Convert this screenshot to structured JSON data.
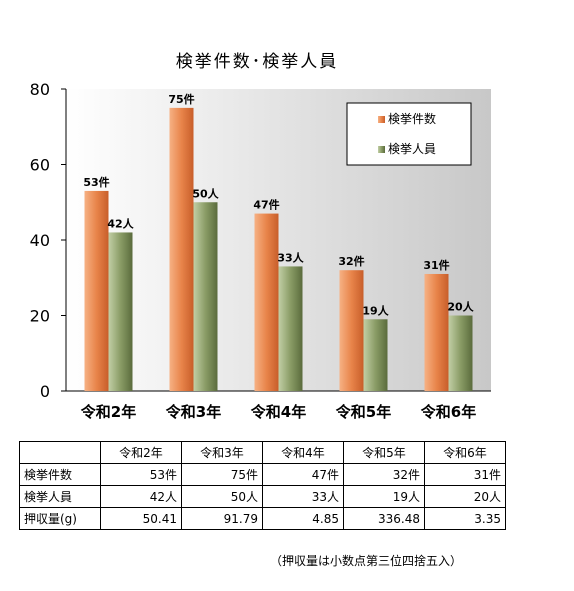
{
  "chart_data": {
    "type": "bar",
    "title": "検挙件数･検挙人員",
    "categories": [
      "令和2年",
      "令和3年",
      "令和4年",
      "令和5年",
      "令和6年"
    ],
    "series": [
      {
        "name": "検挙件数",
        "values": [
          53,
          75,
          47,
          32,
          31
        ],
        "labels": [
          "53件",
          "75件",
          "47件",
          "32件",
          "31件"
        ],
        "color": "#e8844a"
      },
      {
        "name": "検挙人員",
        "values": [
          42,
          50,
          33,
          19,
          20
        ],
        "labels": [
          "42人",
          "50人",
          "33人",
          "19人",
          "20人"
        ],
        "color": "#7d8f5a"
      }
    ],
    "ylim": [
      0,
      80
    ],
    "yticks": [
      0,
      20,
      40,
      60,
      80
    ],
    "legend_position": "top-right",
    "grid": false
  },
  "table": {
    "header": [
      "令和2年",
      "令和3年",
      "令和4年",
      "令和5年",
      "令和6年"
    ],
    "rows": [
      {
        "label": "検挙件数",
        "cells": [
          "53件",
          "75件",
          "47件",
          "32件",
          "31件"
        ]
      },
      {
        "label": "検挙人員",
        "cells": [
          "42人",
          "50人",
          "33人",
          "19人",
          "20人"
        ]
      },
      {
        "label": "押収量(g)",
        "cells": [
          "50.41",
          "91.79",
          "4.85",
          "336.48",
          "3.35"
        ]
      }
    ]
  },
  "footnote": "（押収量は小数点第三位四捨五入）"
}
